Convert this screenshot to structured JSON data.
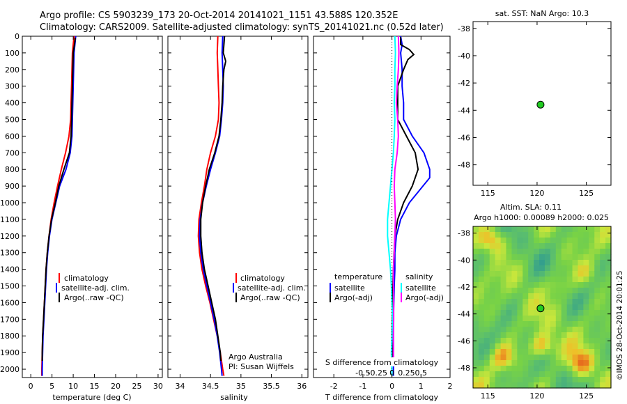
{
  "header": {
    "line1": "Argo profile: CS 5903239_173 20-Oct-2014 20141021_1151 43.588S 120.352E",
    "line2": "Climatology: CARS2009. Satellite-adjusted climatology: synTS_20141021.nc (0.52d later)"
  },
  "colors": {
    "climatology": "#ff0000",
    "satellite": "#0000ff",
    "argo": "#000000",
    "sat_salinity": "#00ffff",
    "argo_salinity": "#ff00ff",
    "argo_marker": "#22cc22"
  },
  "chart_data": [
    {
      "type": "line",
      "id": "temperature",
      "xlabel": "temperature (deg C)",
      "ylabel": "",
      "xlim": [
        -2,
        31
      ],
      "ylim": [
        0,
        2050
      ],
      "xticks": [
        0,
        5,
        10,
        15,
        20,
        25,
        30
      ],
      "yticks": [
        0,
        100,
        200,
        300,
        400,
        500,
        600,
        700,
        800,
        900,
        1000,
        1100,
        1200,
        1300,
        1400,
        1500,
        1600,
        1700,
        1800,
        1900,
        2000
      ],
      "legend": [
        "climatology",
        "satellite-adj. clim.",
        "Argo(..raw -QC)"
      ],
      "series": [
        {
          "name": "climatology",
          "color": "#ff0000",
          "points": [
            [
              10.2,
              0
            ],
            [
              10.0,
              50
            ],
            [
              9.8,
              100
            ],
            [
              9.7,
              200
            ],
            [
              9.6,
              300
            ],
            [
              9.5,
              400
            ],
            [
              9.4,
              500
            ],
            [
              9.0,
              600
            ],
            [
              8.2,
              700
            ],
            [
              7.2,
              800
            ],
            [
              6.3,
              900
            ],
            [
              5.5,
              1000
            ],
            [
              4.8,
              1100
            ],
            [
              4.3,
              1200
            ],
            [
              3.9,
              1300
            ],
            [
              3.6,
              1400
            ],
            [
              3.4,
              1500
            ],
            [
              3.2,
              1600
            ],
            [
              3.0,
              1700
            ],
            [
              2.8,
              1800
            ],
            [
              2.7,
              1900
            ],
            [
              2.6,
              2000
            ],
            [
              2.6,
              2040
            ]
          ]
        },
        {
          "name": "satellite-adj. clim.",
          "color": "#0000ff",
          "points": [
            [
              10.6,
              0
            ],
            [
              10.4,
              50
            ],
            [
              10.2,
              100
            ],
            [
              10.1,
              200
            ],
            [
              10.0,
              300
            ],
            [
              9.9,
              400
            ],
            [
              9.8,
              500
            ],
            [
              9.7,
              600
            ],
            [
              9.3,
              700
            ],
            [
              8.3,
              800
            ],
            [
              6.8,
              900
            ],
            [
              5.9,
              1000
            ],
            [
              5.0,
              1100
            ],
            [
              4.4,
              1200
            ],
            [
              4.0,
              1300
            ],
            [
              3.7,
              1400
            ],
            [
              3.5,
              1500
            ],
            [
              3.3,
              1600
            ],
            [
              3.1,
              1700
            ],
            [
              2.9,
              1800
            ],
            [
              2.8,
              1900
            ],
            [
              2.7,
              2000
            ],
            [
              2.7,
              2040
            ]
          ]
        },
        {
          "name": "Argo(..raw -QC)",
          "color": "#000000",
          "points": [
            [
              10.5,
              10
            ],
            [
              10.3,
              50
            ],
            [
              10.0,
              100
            ],
            [
              9.9,
              200
            ],
            [
              9.8,
              300
            ],
            [
              9.7,
              400
            ],
            [
              9.6,
              500
            ],
            [
              9.5,
              600
            ],
            [
              9.1,
              700
            ],
            [
              7.8,
              800
            ],
            [
              6.6,
              900
            ],
            [
              5.8,
              1000
            ],
            [
              4.9,
              1100
            ],
            [
              4.3,
              1200
            ],
            [
              3.9,
              1300
            ],
            [
              3.6,
              1400
            ],
            [
              3.4,
              1500
            ],
            [
              3.2,
              1600
            ],
            [
              3.0,
              1700
            ],
            [
              2.8,
              1800
            ],
            [
              2.7,
              1900
            ],
            [
              2.7,
              1950
            ]
          ]
        }
      ]
    },
    {
      "type": "line",
      "id": "salinity",
      "xlabel": "salinity",
      "xlim": [
        33.8,
        36.1
      ],
      "ylim": [
        0,
        2050
      ],
      "xticks": [
        34,
        34.5,
        35,
        35.5,
        36
      ],
      "legend": [
        "climatology",
        "satellite-adj. clim.",
        "Argo(..raw -QC)"
      ],
      "annotation": [
        "Argo Australia",
        "PI: Susan Wijffels"
      ],
      "series": [
        {
          "name": "climatology",
          "color": "#ff0000",
          "points": [
            [
              34.62,
              0
            ],
            [
              34.61,
              100
            ],
            [
              34.62,
              200
            ],
            [
              34.63,
              300
            ],
            [
              34.64,
              400
            ],
            [
              34.63,
              500
            ],
            [
              34.58,
              600
            ],
            [
              34.5,
              700
            ],
            [
              34.44,
              800
            ],
            [
              34.4,
              900
            ],
            [
              34.35,
              1000
            ],
            [
              34.31,
              1100
            ],
            [
              34.3,
              1200
            ],
            [
              34.32,
              1300
            ],
            [
              34.36,
              1400
            ],
            [
              34.42,
              1500
            ],
            [
              34.49,
              1600
            ],
            [
              34.55,
              1700
            ],
            [
              34.61,
              1800
            ],
            [
              34.66,
              1900
            ],
            [
              34.7,
              2000
            ],
            [
              34.72,
              2040
            ]
          ]
        },
        {
          "name": "satellite-adj. clim.",
          "color": "#0000ff",
          "points": [
            [
              34.7,
              0
            ],
            [
              34.69,
              100
            ],
            [
              34.7,
              200
            ],
            [
              34.71,
              300
            ],
            [
              34.7,
              400
            ],
            [
              34.68,
              500
            ],
            [
              34.65,
              600
            ],
            [
              34.58,
              700
            ],
            [
              34.5,
              800
            ],
            [
              34.43,
              900
            ],
            [
              34.37,
              1000
            ],
            [
              34.33,
              1100
            ],
            [
              34.32,
              1200
            ],
            [
              34.34,
              1300
            ],
            [
              34.38,
              1400
            ],
            [
              34.44,
              1500
            ],
            [
              34.5,
              1600
            ],
            [
              34.56,
              1700
            ],
            [
              34.61,
              1800
            ],
            [
              34.65,
              1900
            ],
            [
              34.68,
              2000
            ],
            [
              34.69,
              2040
            ]
          ]
        },
        {
          "name": "Argo(..raw -QC)",
          "color": "#000000",
          "points": [
            [
              34.73,
              0
            ],
            [
              34.71,
              100
            ],
            [
              34.75,
              150
            ],
            [
              34.72,
              200
            ],
            [
              34.7,
              300
            ],
            [
              34.69,
              400
            ],
            [
              34.67,
              500
            ],
            [
              34.64,
              600
            ],
            [
              34.57,
              700
            ],
            [
              34.48,
              800
            ],
            [
              34.42,
              900
            ],
            [
              34.37,
              1000
            ],
            [
              34.34,
              1100
            ],
            [
              34.34,
              1200
            ],
            [
              34.36,
              1300
            ],
            [
              34.4,
              1400
            ],
            [
              34.46,
              1500
            ],
            [
              34.52,
              1600
            ],
            [
              34.58,
              1700
            ],
            [
              34.62,
              1800
            ],
            [
              34.66,
              1900
            ],
            [
              34.67,
              1950
            ]
          ]
        }
      ]
    },
    {
      "type": "line",
      "id": "difference",
      "xlabel": "T difference from climatology",
      "xlabel_top": "S difference from climatology",
      "xlim": [
        -2.7,
        2.0
      ],
      "ylim": [
        0,
        2050
      ],
      "xticks": [
        -2,
        -1,
        0,
        1,
        2
      ],
      "xtick_labels": [
        "-2",
        "-1",
        "0",
        "1",
        "2"
      ],
      "s_ticks": [
        -0.5,
        -0.25,
        0,
        0.25,
        0.5
      ],
      "s_tick_labels": [
        "-0.5",
        "-0.25",
        "0",
        "0.25",
        "0.5"
      ],
      "legend_title_t": "temperature",
      "legend_title_s": "salinity",
      "legend_t": [
        "satellite",
        "Argo(-adj)"
      ],
      "legend_s": [
        "satellite",
        "Argo(-adj)"
      ],
      "series": [
        {
          "name": "temperature satellite",
          "color": "#0000ff",
          "points": [
            [
              0.3,
              0
            ],
            [
              0.35,
              50
            ],
            [
              0.3,
              100
            ],
            [
              0.35,
              200
            ],
            [
              0.35,
              300
            ],
            [
              0.4,
              400
            ],
            [
              0.4,
              500
            ],
            [
              0.7,
              600
            ],
            [
              1.1,
              700
            ],
            [
              1.3,
              800
            ],
            [
              1.3,
              850
            ],
            [
              0.6,
              1000
            ],
            [
              0.3,
              1100
            ],
            [
              0.15,
              1200
            ],
            [
              0.1,
              1300
            ],
            [
              0.1,
              1400
            ],
            [
              0.08,
              1500
            ],
            [
              0.05,
              1700
            ],
            [
              0.05,
              2000
            ],
            [
              0.05,
              2040
            ]
          ]
        },
        {
          "name": "temperature Argo",
          "color": "#000000",
          "points": [
            [
              0.3,
              5
            ],
            [
              0.3,
              50
            ],
            [
              0.6,
              80
            ],
            [
              0.75,
              110
            ],
            [
              0.55,
              140
            ],
            [
              0.4,
              200
            ],
            [
              0.2,
              300
            ],
            [
              0.2,
              400
            ],
            [
              0.2,
              500
            ],
            [
              0.5,
              600
            ],
            [
              0.8,
              700
            ],
            [
              0.9,
              800
            ],
            [
              0.7,
              900
            ],
            [
              0.4,
              1000
            ],
            [
              0.2,
              1100
            ],
            [
              0.1,
              1200
            ],
            [
              0.05,
              1400
            ],
            [
              0.02,
              1600
            ],
            [
              0.0,
              1800
            ],
            [
              0.0,
              1950
            ]
          ]
        },
        {
          "name": "salinity satellite",
          "color": "#00ffff",
          "points": [
            [
              0.1,
              0
            ],
            [
              0.12,
              100
            ],
            [
              0.1,
              200
            ],
            [
              0.1,
              300
            ],
            [
              0.08,
              400
            ],
            [
              0.1,
              500
            ],
            [
              0.08,
              600
            ],
            [
              0.05,
              700
            ],
            [
              0.0,
              800
            ],
            [
              -0.05,
              900
            ],
            [
              -0.1,
              1000
            ],
            [
              -0.15,
              1100
            ],
            [
              -0.15,
              1200
            ],
            [
              -0.1,
              1300
            ],
            [
              -0.05,
              1400
            ],
            [
              -0.02,
              1500
            ],
            [
              0.0,
              1600
            ],
            [
              0.02,
              1700
            ],
            [
              0.0,
              1800
            ],
            [
              -0.02,
              1900
            ],
            [
              0.0,
              2040
            ]
          ]
        },
        {
          "name": "salinity Argo",
          "color": "#ff00ff",
          "points": [
            [
              0.22,
              0
            ],
            [
              0.24,
              100
            ],
            [
              0.22,
              200
            ],
            [
              0.18,
              300
            ],
            [
              0.15,
              400
            ],
            [
              0.2,
              500
            ],
            [
              0.22,
              600
            ],
            [
              0.18,
              700
            ],
            [
              0.1,
              800
            ],
            [
              0.08,
              900
            ],
            [
              0.1,
              1000
            ],
            [
              0.12,
              1100
            ],
            [
              0.1,
              1200
            ],
            [
              0.08,
              1300
            ],
            [
              0.05,
              1400
            ],
            [
              0.05,
              1500
            ],
            [
              0.06,
              1600
            ],
            [
              0.06,
              1700
            ],
            [
              0.05,
              1800
            ],
            [
              0.05,
              1950
            ]
          ]
        }
      ]
    },
    {
      "type": "scatter",
      "id": "sst-map",
      "title": "sat. SST: NaN Argo: 10.3",
      "xlim": [
        113.5,
        127.5
      ],
      "ylim": [
        -49.5,
        -37.5
      ],
      "xticks": [
        115,
        120,
        125
      ],
      "yticks": [
        -38,
        -40,
        -42,
        -44,
        -46,
        -48
      ],
      "ytick_labels": [
        "-38",
        "-40",
        "-42",
        "-44",
        "-46",
        "-48"
      ],
      "points": [
        {
          "x": 120.352,
          "y": -43.588
        }
      ]
    },
    {
      "type": "heatmap",
      "id": "sla-map",
      "title": [
        "Altim. SLA: 0.11",
        "Argo h1000: 0.00089 h2000: 0.025"
      ],
      "xlim": [
        113.5,
        127.5
      ],
      "ylim": [
        -49.5,
        -37.5
      ],
      "xticks": [
        115,
        120,
        125
      ],
      "yticks": [
        -38,
        -40,
        -42,
        -44,
        -46,
        -48
      ],
      "ytick_labels": [
        "-38",
        "-40",
        "-42",
        "-44",
        "-46",
        "-48"
      ],
      "points": [
        {
          "x": 120.352,
          "y": -43.588
        }
      ]
    }
  ],
  "credit": "©IMOS 28-Oct-2014 20:01:25"
}
